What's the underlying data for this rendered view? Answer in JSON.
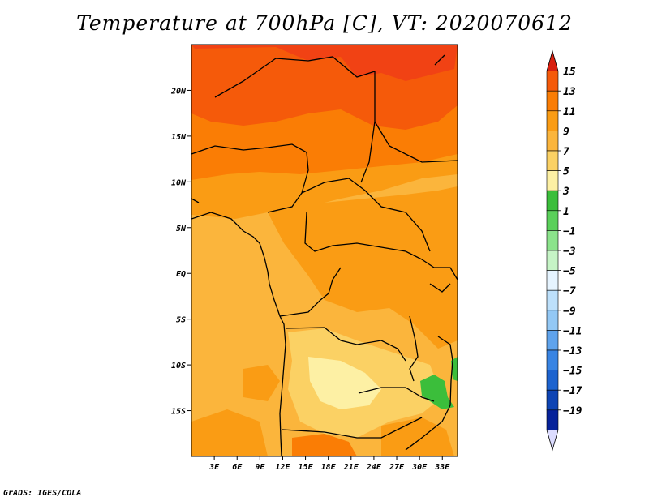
{
  "title": "Temperature at 700hPa [C], VT: 2020070612",
  "credit": "GrADS: IGES/COLA",
  "map": {
    "lon_range": [
      0,
      35
    ],
    "lat_range": [
      -20,
      25
    ],
    "lat_ticks": [
      {
        "value": 20,
        "label": "20N"
      },
      {
        "value": 15,
        "label": "15N"
      },
      {
        "value": 10,
        "label": "10N"
      },
      {
        "value": 5,
        "label": "5N"
      },
      {
        "value": 0,
        "label": "EQ"
      },
      {
        "value": -5,
        "label": "5S"
      },
      {
        "value": -10,
        "label": "10S"
      },
      {
        "value": -15,
        "label": "15S"
      }
    ],
    "lon_ticks": [
      {
        "value": 3,
        "label": "3E"
      },
      {
        "value": 6,
        "label": "6E"
      },
      {
        "value": 9,
        "label": "9E"
      },
      {
        "value": 12,
        "label": "12E"
      },
      {
        "value": 15,
        "label": "15E"
      },
      {
        "value": 18,
        "label": "18E"
      },
      {
        "value": 21,
        "label": "21E"
      },
      {
        "value": 24,
        "label": "24E"
      },
      {
        "value": 27,
        "label": "27E"
      },
      {
        "value": 30,
        "label": "30E"
      },
      {
        "value": 33,
        "label": "33E"
      }
    ]
  },
  "colorbar": {
    "labels": [
      "15",
      "13",
      "11",
      "9",
      "7",
      "5",
      "3",
      "1",
      "-1",
      "-3",
      "-5",
      "-7",
      "-9",
      "-11",
      "-13",
      "-15",
      "-17",
      "-19"
    ],
    "colors": [
      "#f03818",
      "#f55a0a",
      "#fa7d05",
      "#fa9c14",
      "#fbb53c",
      "#fbd164",
      "#fdf0a4",
      "#3bbe3b",
      "#5ad05a",
      "#8be38b",
      "#c6f4c6",
      "#e6f4ff",
      "#bde0fb",
      "#93c8f5",
      "#5fa3ec",
      "#3884e3",
      "#1c63cf",
      "#0d44b4",
      "#06229a",
      "#0a0a70"
    ],
    "top_arrow_color": "#d82010",
    "bottom_arrow_color": "#dcdcff"
  }
}
